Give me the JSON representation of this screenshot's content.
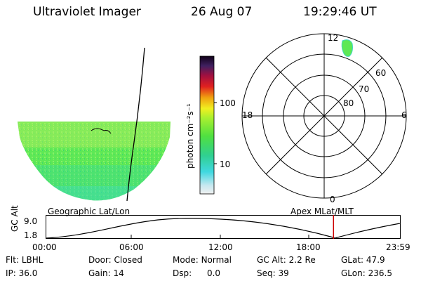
{
  "header": {
    "title": "Ultraviolet Imager",
    "date": "26 Aug 07",
    "time": "19:29:46 UT"
  },
  "colorbar": {
    "label": "photon cm⁻²s⁻¹",
    "ticks": [
      "100",
      "10"
    ],
    "scale": "log"
  },
  "polar_plot": {
    "mlt_labels": [
      "12",
      "18",
      "6",
      "0"
    ],
    "lat_labels": [
      "60",
      "70",
      "80"
    ]
  },
  "panel_labels": {
    "left": "Geographic Lat/Lon",
    "right": "Apex MLat/MLT"
  },
  "altitude_strip": {
    "ylabel": "GC Alt",
    "yticks": [
      "9.0",
      "1.8"
    ],
    "xticks": [
      "00:00",
      "06:00",
      "12:00",
      "18:00",
      "23:59"
    ],
    "current_time_fraction": 0.8125,
    "marker_color": "#cc0000"
  },
  "info": {
    "row1": [
      {
        "label": "Flt:",
        "value": "LBHL"
      },
      {
        "label": "Door:",
        "value": "Closed"
      },
      {
        "label": "Mode:",
        "value": "Normal"
      },
      {
        "label": "GC Alt:",
        "value": "2.2 Re"
      },
      {
        "label": "GLat:",
        "value": "47.9"
      }
    ],
    "row2": [
      {
        "label": "IP:",
        "value": "36.0"
      },
      {
        "label": "Gain:",
        "value": "14"
      },
      {
        "label": "Dsp:",
        "value": "0.0"
      },
      {
        "label": "Seq:",
        "value": "39"
      },
      {
        "label": "GLon:",
        "value": "236.5"
      }
    ]
  }
}
